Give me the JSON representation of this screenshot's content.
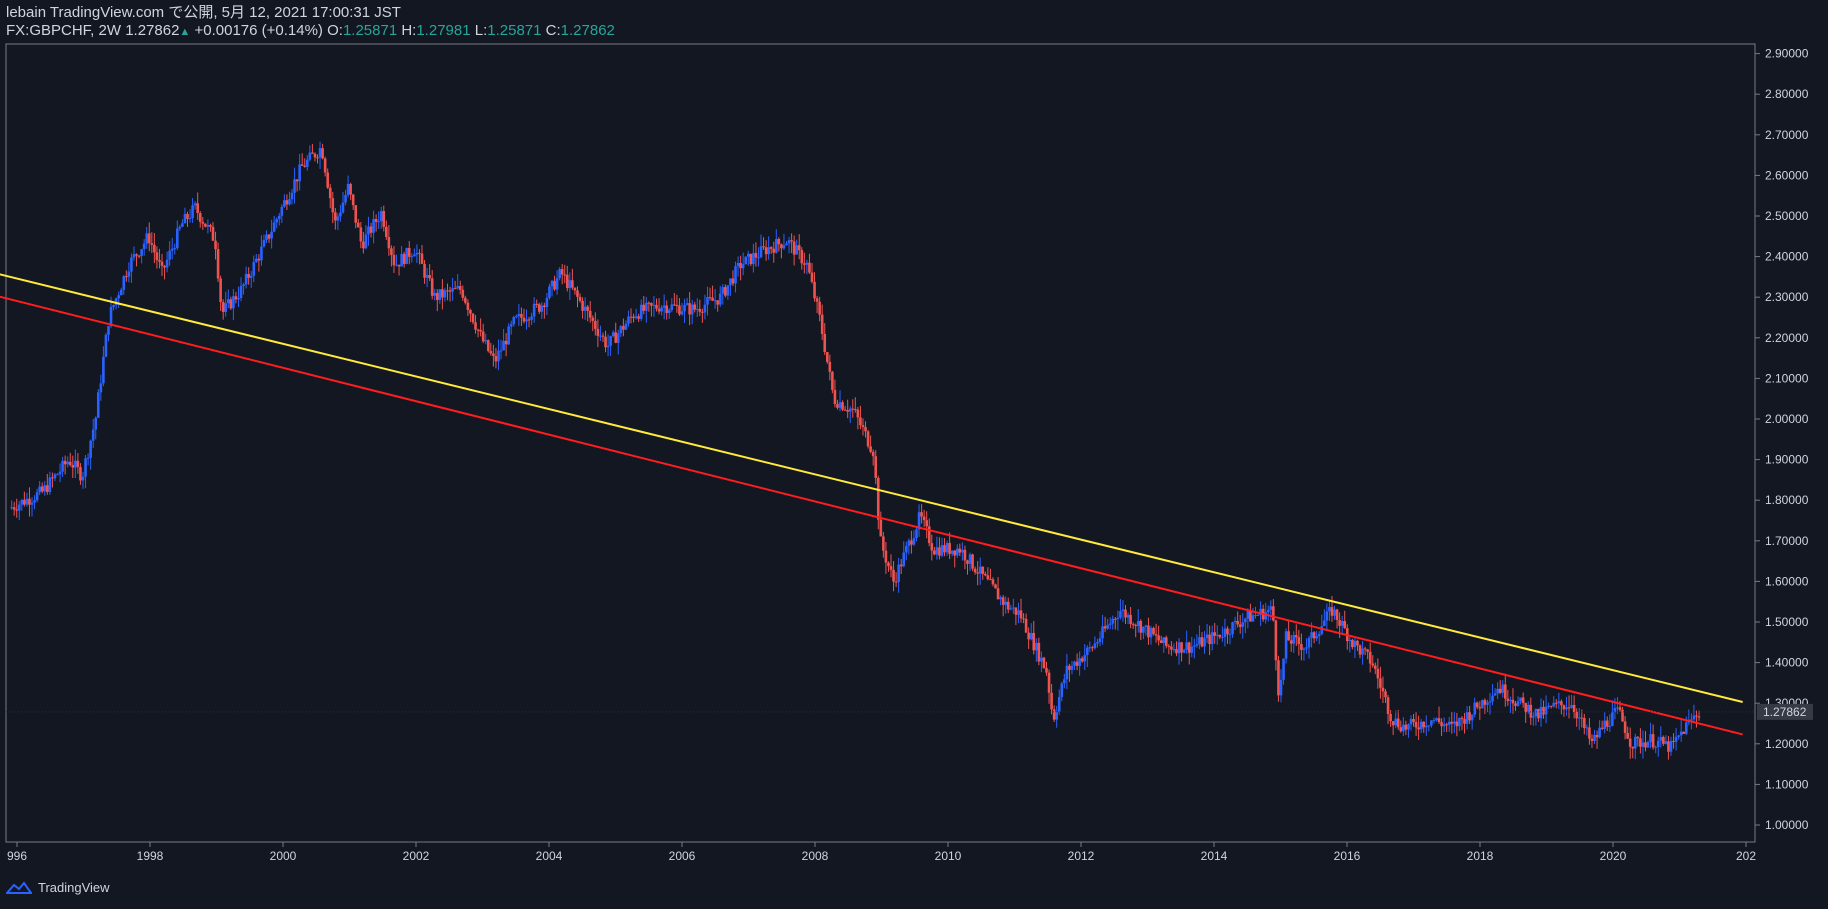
{
  "header": {
    "published": "lebain TradingView.com で公開, 5月 12, 2021 17:00:31 JST",
    "symbol": "FX:GBPCHF, 2W",
    "last": "1.27862",
    "change": "+0.00176 (+0.14%)",
    "o_label": "O:",
    "o_value": "1.25871",
    "h_label": "H:",
    "h_value": "1.27981",
    "l_label": "L:",
    "l_value": "1.25871",
    "c_label": "C:",
    "c_value": "1.27862"
  },
  "footer": {
    "brand": "TradingView"
  },
  "colors": {
    "background": "#131722",
    "up": "#2962ff",
    "down": "#ef5350",
    "yellow_line": "#ffeb3b",
    "red_line": "#ff1d1d",
    "grid_border": "#787b86"
  },
  "chart_data": {
    "type": "candlestick",
    "symbol": "FX:GBPCHF",
    "timeframe": "2W",
    "x_ticks": [
      "996",
      "1998",
      "2000",
      "2002",
      "2004",
      "2006",
      "2008",
      "2010",
      "2012",
      "2014",
      "2016",
      "2018",
      "2020",
      "202"
    ],
    "y_ticks": [
      "1.00000",
      "1.10000",
      "1.20000",
      "1.30000",
      "1.40000",
      "1.50000",
      "1.60000",
      "1.70000",
      "1.80000",
      "1.90000",
      "2.00000",
      "2.10000",
      "2.20000",
      "2.30000",
      "2.40000",
      "2.50000",
      "2.60000",
      "2.70000",
      "2.80000",
      "2.90000"
    ],
    "ylim": [
      0.97,
      2.92
    ],
    "last_price_label": "1.27862",
    "price_path": [
      [
        1995.9,
        1.78
      ],
      [
        1996.4,
        1.82
      ],
      [
        1996.8,
        1.9
      ],
      [
        1997.0,
        1.86
      ],
      [
        1997.2,
        2.0
      ],
      [
        1997.4,
        2.25
      ],
      [
        1997.7,
        2.38
      ],
      [
        1998.0,
        2.45
      ],
      [
        1998.2,
        2.36
      ],
      [
        1998.5,
        2.48
      ],
      [
        1998.7,
        2.52
      ],
      [
        1999.0,
        2.44
      ],
      [
        1999.1,
        2.26
      ],
      [
        1999.4,
        2.32
      ],
      [
        1999.8,
        2.45
      ],
      [
        2000.0,
        2.52
      ],
      [
        2000.3,
        2.62
      ],
      [
        2000.6,
        2.67
      ],
      [
        2000.8,
        2.48
      ],
      [
        2001.0,
        2.57
      ],
      [
        2001.2,
        2.43
      ],
      [
        2001.5,
        2.51
      ],
      [
        2001.7,
        2.38
      ],
      [
        2002.0,
        2.42
      ],
      [
        2002.3,
        2.3
      ],
      [
        2002.7,
        2.32
      ],
      [
        2003.0,
        2.2
      ],
      [
        2003.2,
        2.14
      ],
      [
        2003.5,
        2.24
      ],
      [
        2003.9,
        2.28
      ],
      [
        2004.2,
        2.36
      ],
      [
        2004.6,
        2.26
      ],
      [
        2004.9,
        2.18
      ],
      [
        2005.3,
        2.26
      ],
      [
        2005.7,
        2.28
      ],
      [
        2006.2,
        2.27
      ],
      [
        2006.6,
        2.3
      ],
      [
        2006.9,
        2.38
      ],
      [
        2007.3,
        2.42
      ],
      [
        2007.6,
        2.44
      ],
      [
        2007.9,
        2.38
      ],
      [
        2008.1,
        2.24
      ],
      [
        2008.3,
        2.05
      ],
      [
        2008.6,
        2.02
      ],
      [
        2008.9,
        1.92
      ],
      [
        2009.0,
        1.7
      ],
      [
        2009.2,
        1.6
      ],
      [
        2009.6,
        1.76
      ],
      [
        2009.8,
        1.68
      ],
      [
        2010.2,
        1.68
      ],
      [
        2010.5,
        1.62
      ],
      [
        2010.9,
        1.54
      ],
      [
        2011.1,
        1.52
      ],
      [
        2011.5,
        1.38
      ],
      [
        2011.6,
        1.26
      ],
      [
        2011.8,
        1.38
      ],
      [
        2012.2,
        1.44
      ],
      [
        2012.6,
        1.53
      ],
      [
        2013.0,
        1.48
      ],
      [
        2013.3,
        1.44
      ],
      [
        2013.7,
        1.44
      ],
      [
        2014.1,
        1.47
      ],
      [
        2014.5,
        1.51
      ],
      [
        2014.9,
        1.53
      ],
      [
        2015.0,
        1.31
      ],
      [
        2015.1,
        1.46
      ],
      [
        2015.4,
        1.44
      ],
      [
        2015.8,
        1.53
      ],
      [
        2016.1,
        1.45
      ],
      [
        2016.4,
        1.4
      ],
      [
        2016.7,
        1.26
      ],
      [
        2016.9,
        1.24
      ],
      [
        2017.3,
        1.26
      ],
      [
        2017.6,
        1.24
      ],
      [
        2017.9,
        1.28
      ],
      [
        2018.3,
        1.34
      ],
      [
        2018.6,
        1.3
      ],
      [
        2018.9,
        1.27
      ],
      [
        2019.1,
        1.29
      ],
      [
        2019.4,
        1.3
      ],
      [
        2019.7,
        1.2
      ],
      [
        2019.9,
        1.25
      ],
      [
        2020.1,
        1.28
      ],
      [
        2020.3,
        1.2
      ],
      [
        2020.6,
        1.21
      ],
      [
        2020.9,
        1.19
      ],
      [
        2021.1,
        1.24
      ],
      [
        2021.3,
        1.278
      ]
    ],
    "trendlines": [
      {
        "color": "yellow",
        "from": [
          1995.7,
          2.358
        ],
        "to": [
          2021.95,
          1.303
        ]
      },
      {
        "color": "red",
        "from": [
          1995.7,
          2.303
        ],
        "to": [
          2021.95,
          1.223
        ]
      }
    ]
  }
}
